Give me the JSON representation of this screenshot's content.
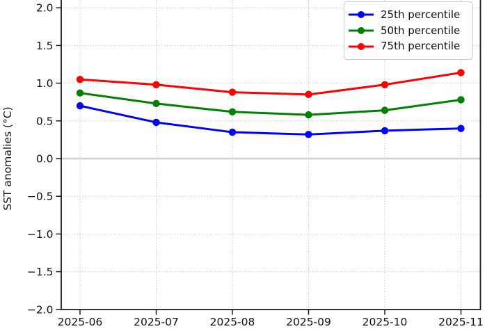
{
  "chart_data": {
    "type": "line",
    "ylabel": "SST anomalies (°C)",
    "xlabel": "",
    "categories": [
      "2025-06",
      "2025-07",
      "2025-08",
      "2025-09",
      "2025-10",
      "2025-11"
    ],
    "series": [
      {
        "name": "25th percentile",
        "color": "#0000ff",
        "values": [
          0.7,
          0.48,
          0.35,
          0.32,
          0.37,
          0.4
        ]
      },
      {
        "name": "50th percentile",
        "color": "#008000",
        "values": [
          0.87,
          0.73,
          0.62,
          0.58,
          0.64,
          0.78
        ]
      },
      {
        "name": "75th percentile",
        "color": "#ff0000",
        "values": [
          1.05,
          0.98,
          0.88,
          0.85,
          0.98,
          1.14
        ]
      }
    ],
    "ylim": [
      -2.0,
      2.1
    ],
    "yticks": [
      2.0,
      1.5,
      1.0,
      0.5,
      0.0,
      -0.5,
      -1.0,
      -1.5,
      -2.0
    ],
    "ytick_labels": [
      "2.0",
      "1.5",
      "1.0",
      "0.5",
      "0.0",
      "−0.5",
      "−1.0",
      "−1.5",
      "−2.0"
    ],
    "grid": true,
    "grid_style": "dotted",
    "zero_line": true,
    "legend_position": "upper right"
  }
}
